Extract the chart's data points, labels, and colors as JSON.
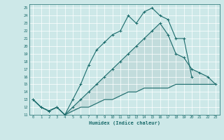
{
  "xlabel": "Humidex (Indice chaleur)",
  "bg_color": "#cde8e8",
  "grid_color": "#b0d0d0",
  "line_color": "#1a6b6b",
  "fill_color": "#c0dada",
  "xlim": [
    -0.5,
    23.5
  ],
  "ylim": [
    11,
    25.5
  ],
  "yticks": [
    11,
    12,
    13,
    14,
    15,
    16,
    17,
    18,
    19,
    20,
    21,
    22,
    23,
    24,
    25
  ],
  "xticks": [
    0,
    1,
    2,
    3,
    4,
    5,
    6,
    7,
    8,
    9,
    10,
    11,
    12,
    13,
    14,
    15,
    16,
    17,
    18,
    19,
    20,
    21,
    22,
    23
  ],
  "line1_x": [
    0,
    1,
    2,
    3,
    4,
    5,
    6,
    7,
    8,
    9,
    10,
    11,
    12,
    13,
    14,
    15,
    16,
    17,
    18,
    19,
    20
  ],
  "line1_y": [
    13,
    12,
    11.5,
    12,
    11,
    13,
    15,
    17.5,
    19.5,
    20.5,
    21.5,
    22,
    24,
    23,
    24.5,
    25,
    24,
    23.5,
    21,
    21,
    16
  ],
  "line2_x": [
    0,
    1,
    2,
    3,
    4,
    5,
    6,
    7,
    8,
    9,
    10,
    11,
    12,
    13,
    14,
    15,
    16,
    17,
    18,
    19,
    20,
    21,
    22,
    23
  ],
  "line2_y": [
    13,
    12,
    11.5,
    12,
    11,
    12,
    13,
    14,
    15,
    16,
    17,
    18,
    19,
    20,
    21,
    22,
    23,
    21.5,
    19,
    18.5,
    17,
    16.5,
    16,
    15
  ],
  "line3_x": [
    0,
    1,
    2,
    3,
    4,
    5,
    6,
    7,
    8,
    9,
    10,
    11,
    12,
    13,
    14,
    15,
    16,
    17,
    18,
    19,
    20,
    21,
    22,
    23
  ],
  "line3_y": [
    13,
    12,
    11.5,
    12,
    11,
    11.5,
    12,
    12,
    12.5,
    13,
    13,
    13.5,
    14,
    14,
    14.5,
    14.5,
    14.5,
    14.5,
    15,
    15,
    15,
    15,
    15,
    15
  ]
}
